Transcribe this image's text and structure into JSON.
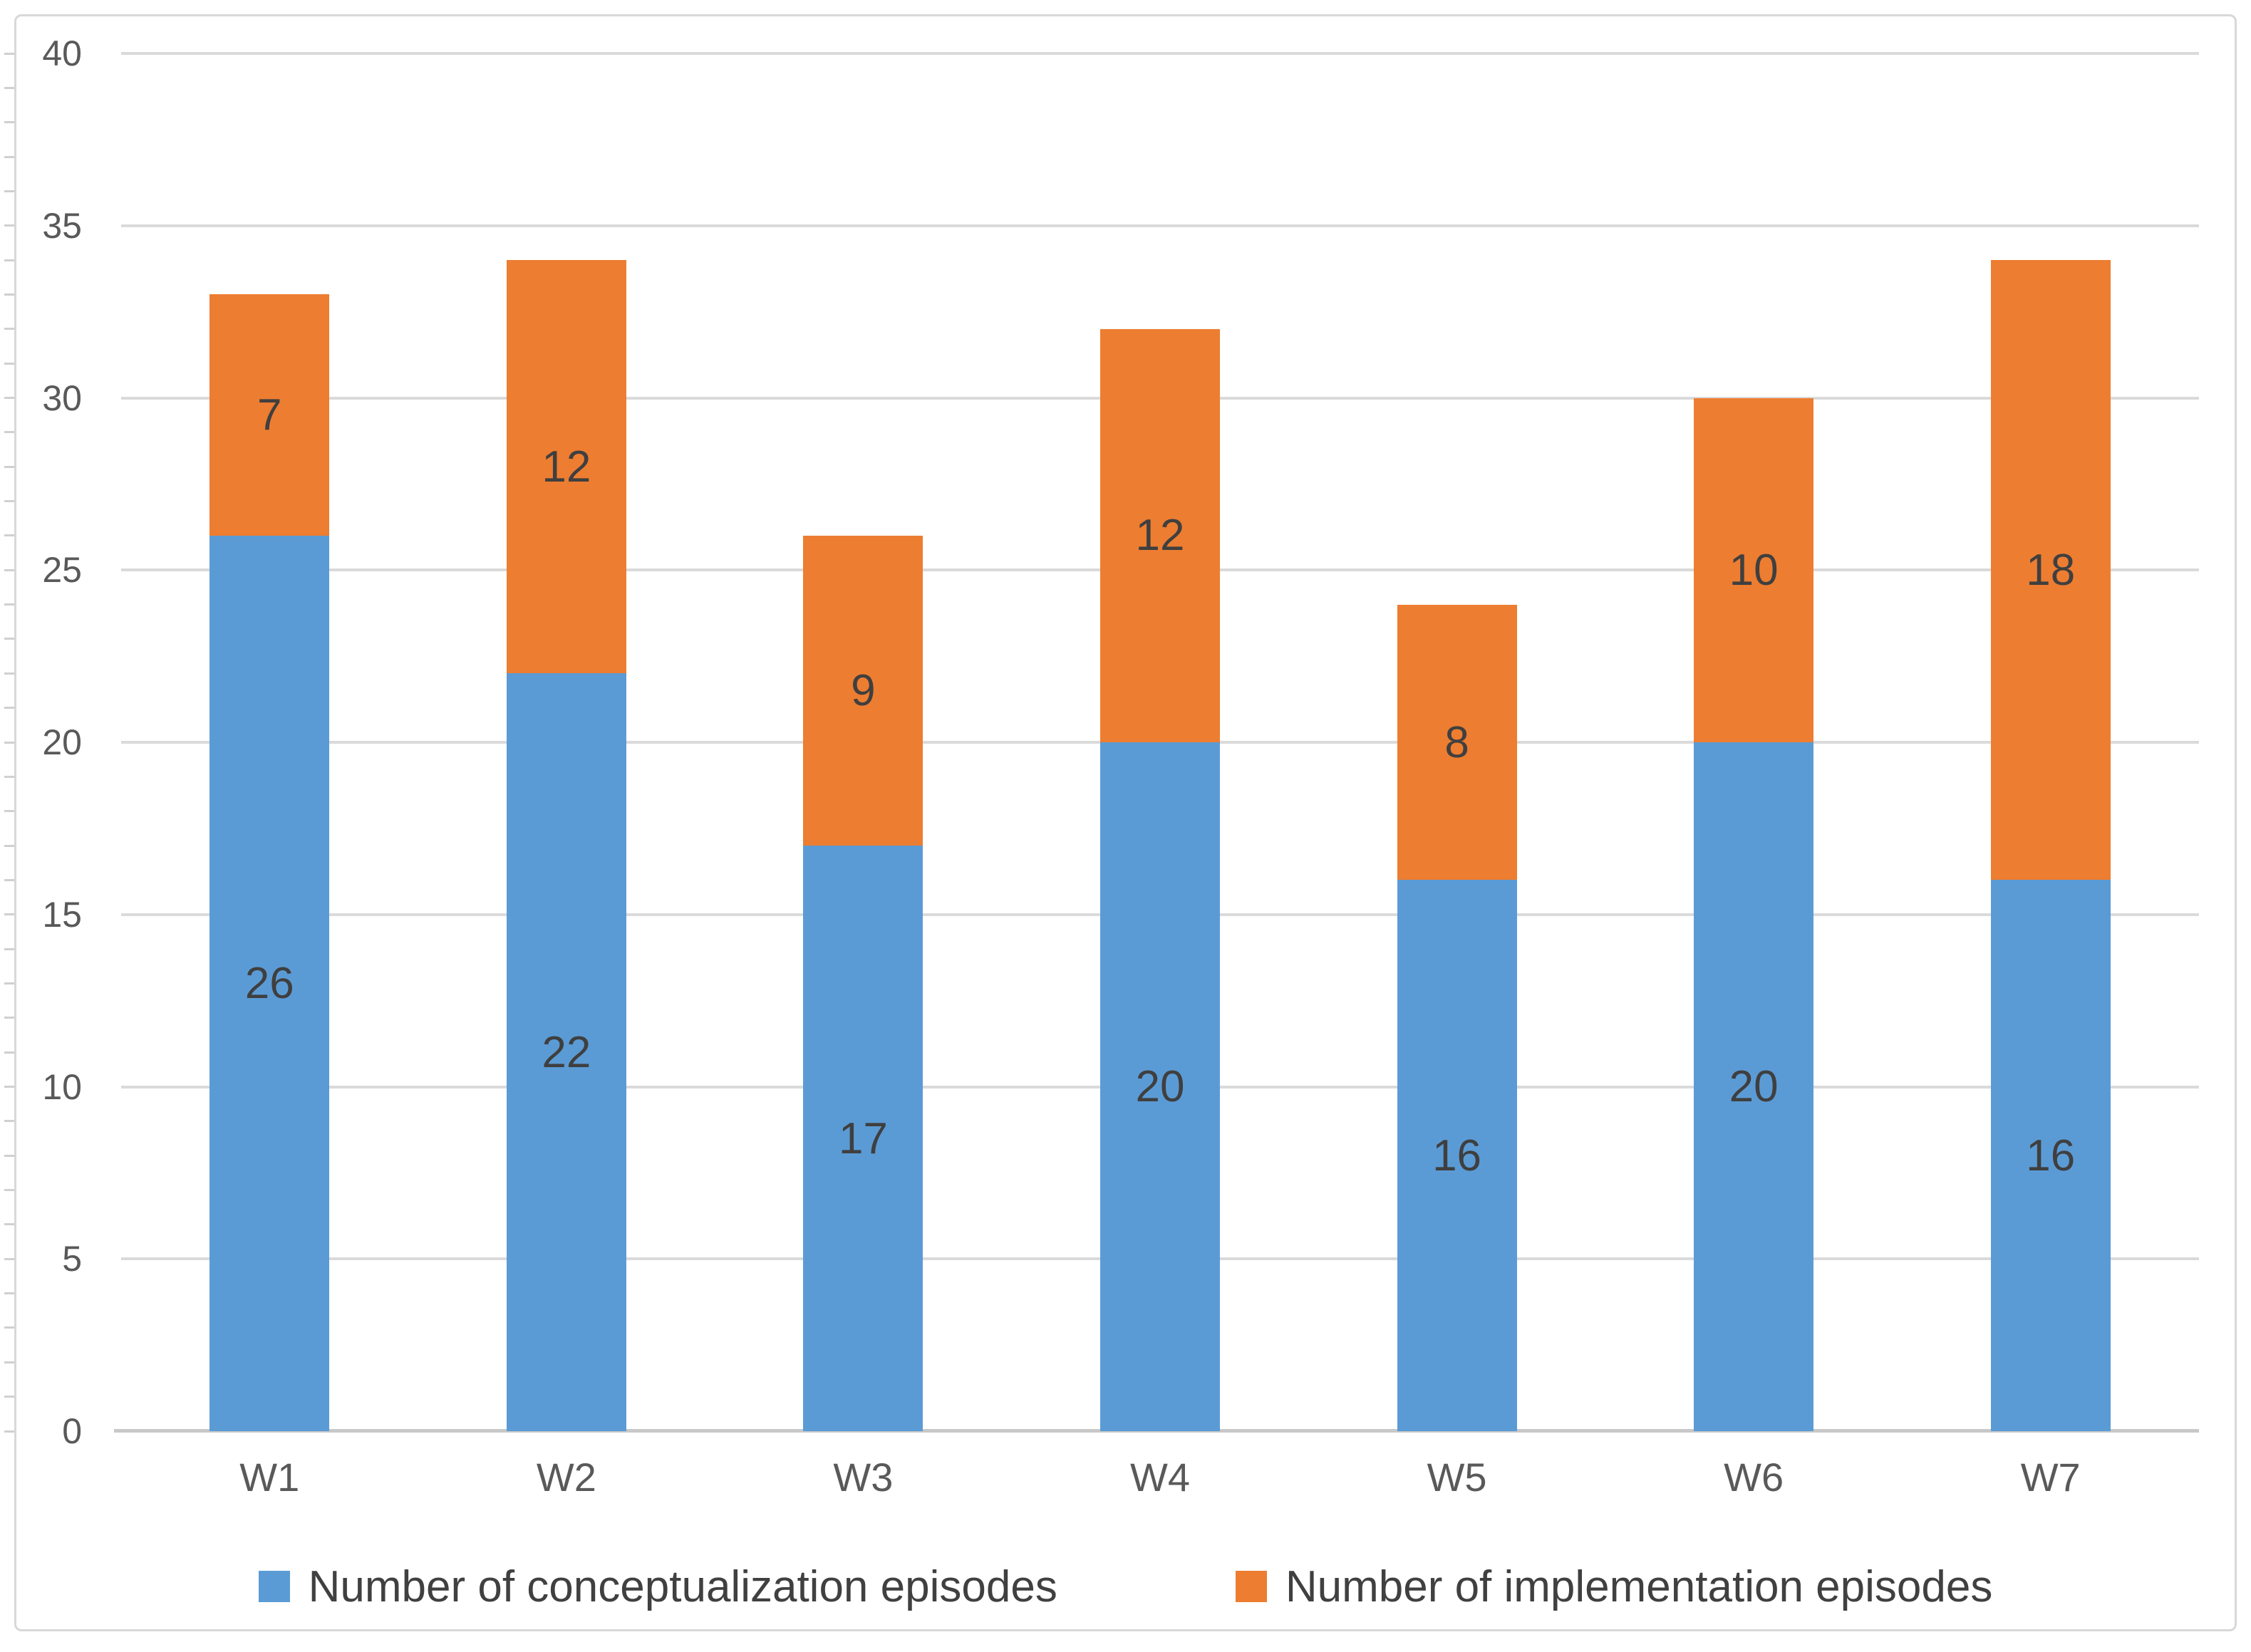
{
  "chart_data": {
    "type": "bar",
    "stacked": true,
    "categories": [
      "W1",
      "W2",
      "W3",
      "W4",
      "W5",
      "W6",
      "W7"
    ],
    "series": [
      {
        "name": "Number of conceptualization episodes",
        "color": "#5B9BD5",
        "values": [
          26,
          22,
          17,
          20,
          16,
          20,
          16
        ]
      },
      {
        "name": "Number of implementation episodes",
        "color": "#ED7D31",
        "values": [
          7,
          12,
          9,
          12,
          8,
          10,
          18
        ]
      }
    ],
    "title": "",
    "xlabel": "",
    "ylabel": "",
    "ylim": [
      0,
      40
    ],
    "y_ticks": [
      0,
      5,
      10,
      15,
      20,
      25,
      30,
      35,
      40
    ],
    "grid": true,
    "data_labels": true,
    "legend_position": "bottom",
    "colors": {
      "gridline": "#DADADA",
      "axis_line": "#C8C8C8",
      "frame_border": "#D8D8D8",
      "data_label_text": "#3F3F3F",
      "axis_tick_text": "#595959",
      "legend_text": "#404040"
    }
  }
}
